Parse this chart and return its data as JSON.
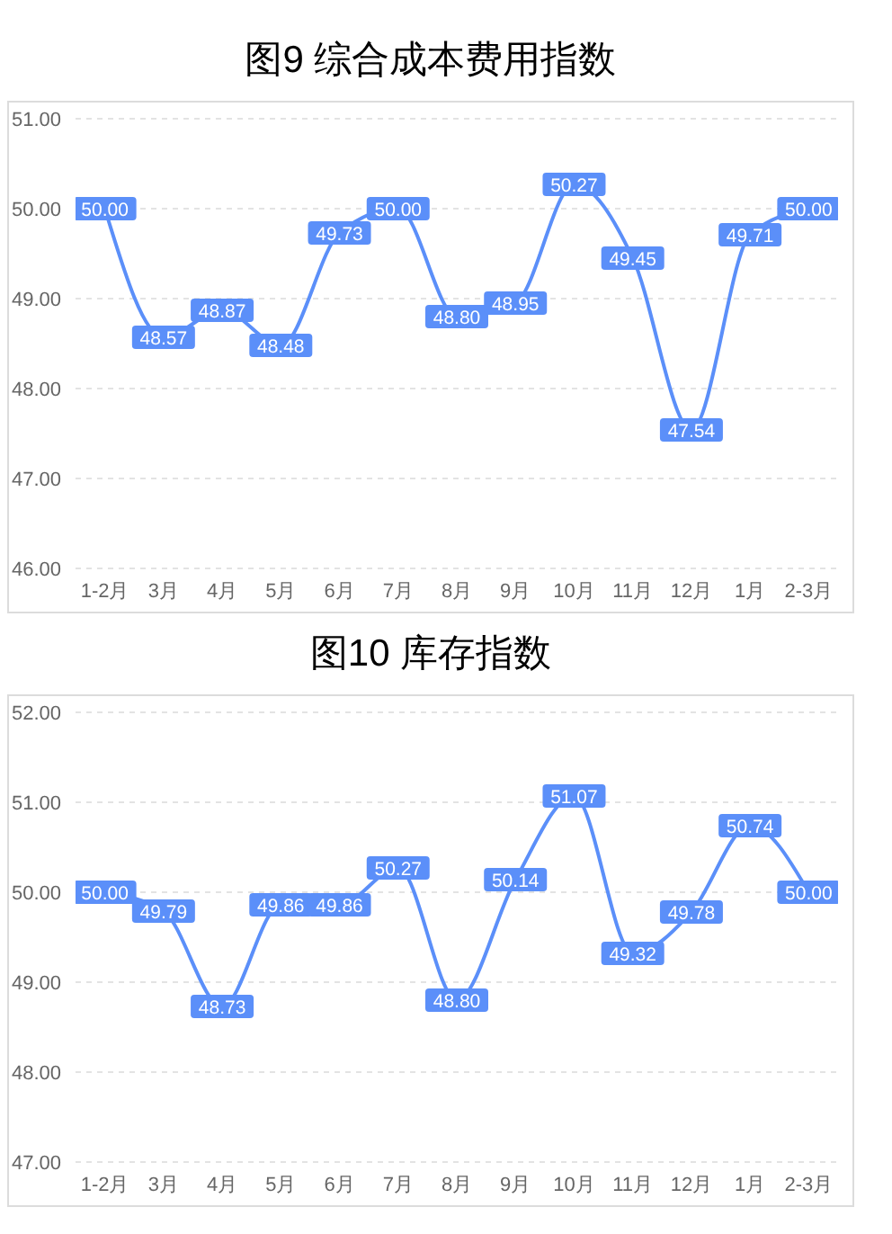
{
  "chart_data": [
    {
      "type": "line",
      "title": "图9 综合成本费用指数",
      "categories": [
        "1-2月",
        "3月",
        "4月",
        "5月",
        "6月",
        "7月",
        "8月",
        "9月",
        "10月",
        "11月",
        "12月",
        "1月",
        "2-3月"
      ],
      "values": [
        50.0,
        48.57,
        48.87,
        48.48,
        49.73,
        50.0,
        48.8,
        48.95,
        50.27,
        49.45,
        47.54,
        49.71,
        50.0
      ],
      "value_labels": [
        "50.00",
        "48.57",
        "48.87",
        "48.48",
        "49.73",
        "50.00",
        "48.80",
        "48.95",
        "50.27",
        "49.45",
        "47.54",
        "49.71",
        "50.00"
      ],
      "color": "#5b8ff9",
      "marker": "square",
      "ylim": [
        46,
        51
      ],
      "yticks": [
        {
          "value": 46,
          "label": "46.00"
        },
        {
          "value": 47,
          "label": "47.00"
        },
        {
          "value": 48,
          "label": "48.00"
        },
        {
          "value": 49,
          "label": "49.00"
        },
        {
          "value": 50,
          "label": "50.00"
        },
        {
          "value": 51,
          "label": "51.00"
        }
      ],
      "grid": "y"
    },
    {
      "type": "line",
      "title": "图10 库存指数",
      "categories": [
        "1-2月",
        "3月",
        "4月",
        "5月",
        "6月",
        "7月",
        "8月",
        "9月",
        "10月",
        "11月",
        "12月",
        "1月",
        "2-3月"
      ],
      "values": [
        50.0,
        49.79,
        48.73,
        49.86,
        49.86,
        50.27,
        48.8,
        50.14,
        51.07,
        49.32,
        49.78,
        50.74,
        50.0
      ],
      "value_labels": [
        "50.00",
        "49.79",
        "48.73",
        "49.86",
        "49.86",
        "50.27",
        "48.80",
        "50.14",
        "51.07",
        "49.32",
        "49.78",
        "50.74",
        "50.00"
      ],
      "color": "#5b8ff9",
      "marker": "square",
      "ylim": [
        47,
        52
      ],
      "yticks": [
        {
          "value": 47,
          "label": "47.00"
        },
        {
          "value": 48,
          "label": "48.00"
        },
        {
          "value": 49,
          "label": "49.00"
        },
        {
          "value": 50,
          "label": "50.00"
        },
        {
          "value": 51,
          "label": "51.00"
        },
        {
          "value": 52,
          "label": "52.00"
        }
      ],
      "grid": "y"
    }
  ]
}
